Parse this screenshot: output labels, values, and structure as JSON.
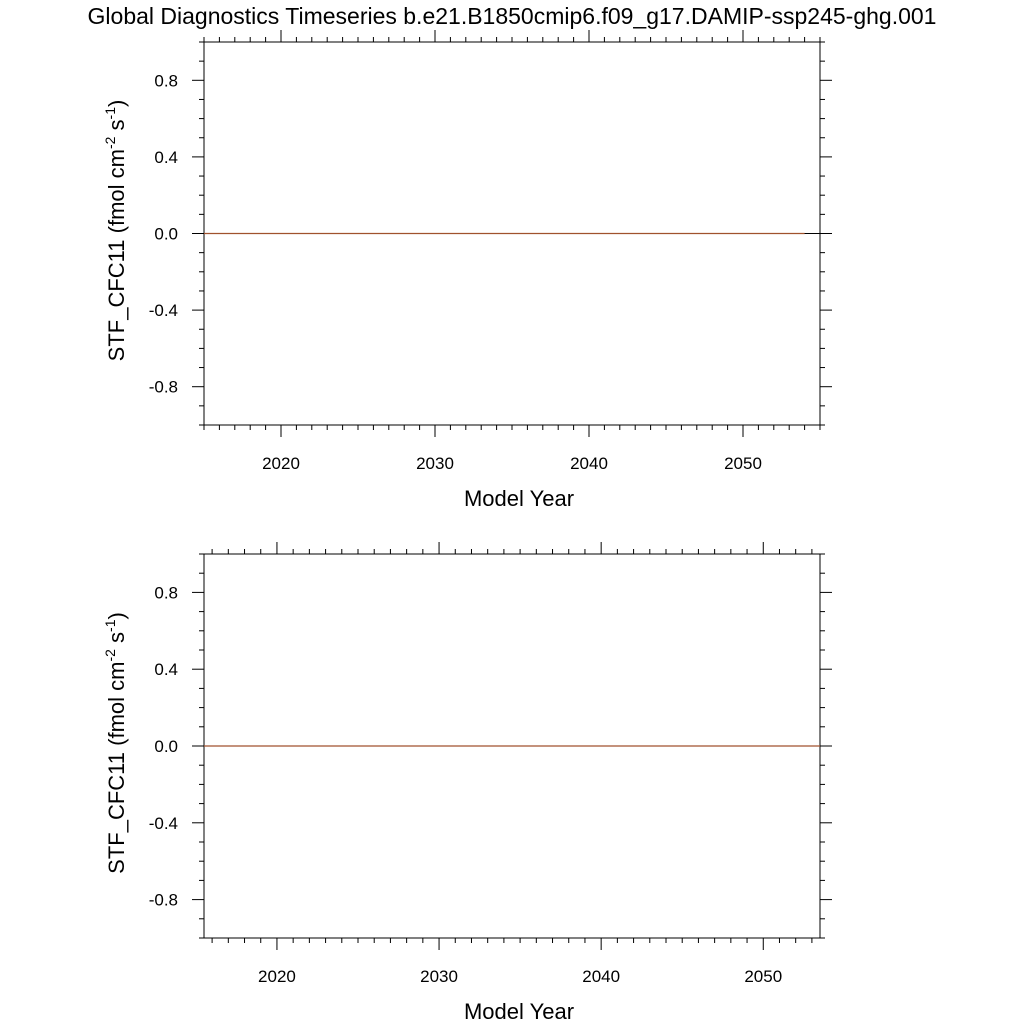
{
  "figure": {
    "title": "Global Diagnostics Timeseries b.e21.B1850cmip6.f09_g17.DAMIP-ssp245-ghg.001"
  },
  "chart_data": [
    {
      "type": "line",
      "xlabel": "Model Year",
      "ylabel": {
        "base": "STF_CFC11 (fmol cm",
        "exp1": "-2",
        "mid": " s",
        "exp2": "-1",
        "end": ")"
      },
      "xlim": [
        2015,
        2055
      ],
      "ylim": [
        -1.0,
        1.0
      ],
      "x_ticks": [
        2020,
        2030,
        2040,
        2050
      ],
      "x_tick_labels": [
        "2020",
        "2030",
        "2040",
        "2050"
      ],
      "y_ticks": [
        0.8,
        0.4,
        0.0,
        -0.4,
        -0.8
      ],
      "y_tick_labels": [
        "0.8",
        "0.4",
        "0.0",
        "-0.4",
        "-0.8"
      ],
      "reference_line": 0.0,
      "grid": false,
      "series": [
        {
          "x": [
            2015,
            2054
          ],
          "y": [
            0.0,
            0.0
          ],
          "color": "#a0522d"
        }
      ]
    },
    {
      "type": "line",
      "xlabel": "Model Year",
      "ylabel": {
        "base": "STF_CFC11 (fmol cm",
        "exp1": "-2",
        "mid": " s",
        "exp2": "-1",
        "end": ")"
      },
      "xlim": [
        2015.5,
        2053.5
      ],
      "ylim": [
        -1.0,
        1.0
      ],
      "x_ticks": [
        2020,
        2030,
        2040,
        2050
      ],
      "x_tick_labels": [
        "2020",
        "2030",
        "2040",
        "2050"
      ],
      "y_ticks": [
        0.8,
        0.4,
        0.0,
        -0.4,
        -0.8
      ],
      "y_tick_labels": [
        "0.8",
        "0.4",
        "0.0",
        "-0.4",
        "-0.8"
      ],
      "reference_line": 0.0,
      "grid": false,
      "series": [
        {
          "x": [
            2015.5,
            2053.5
          ],
          "y": [
            0.0,
            0.0
          ],
          "color": "#a0522d"
        }
      ]
    }
  ]
}
